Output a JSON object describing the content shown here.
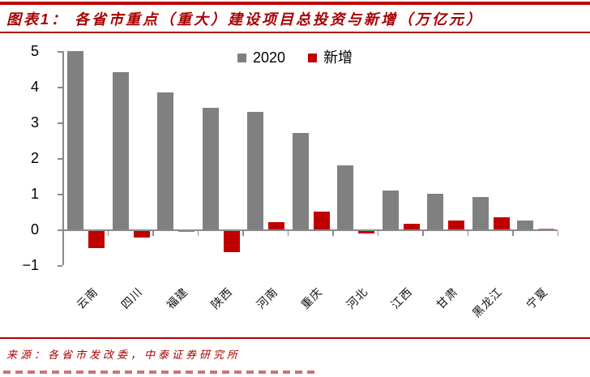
{
  "header": {
    "title": "图表1： 各省市重点（重大）建设项目总投资与新增（万亿元）"
  },
  "chart_data": {
    "type": "bar",
    "title": "各省市重点（重大）建设项目总投资与新增（万亿元）",
    "categories": [
      "云南",
      "四川",
      "福建",
      "陕西",
      "河南",
      "重庆",
      "河北",
      "江西",
      "甘肃",
      "黑龙江",
      "宁夏"
    ],
    "series": [
      {
        "name": "2020",
        "color": "#808080",
        "values": [
          5.0,
          4.4,
          3.85,
          3.4,
          3.3,
          2.7,
          1.8,
          1.1,
          1.0,
          0.9,
          0.25
        ]
      },
      {
        "name": "新增",
        "color": "#C00000",
        "values": [
          -0.48,
          -0.2,
          -0.02,
          -0.6,
          0.2,
          0.5,
          -0.08,
          0.15,
          0.25,
          0.35,
          0.02
        ]
      }
    ],
    "xlabel": "",
    "ylabel": "",
    "ylim": [
      -1,
      5
    ],
    "yticks": [
      -1,
      0,
      1,
      2,
      3,
      4,
      5
    ],
    "legend_position": "top-center",
    "grid": false
  },
  "footer": {
    "source": "来源：各省市发改委，中泰证券研究所"
  },
  "colors": {
    "accent_red": "#C00000",
    "title_red": "#A80000",
    "bar_gray": "#808080",
    "axis_gray": "#8a8a8a"
  }
}
